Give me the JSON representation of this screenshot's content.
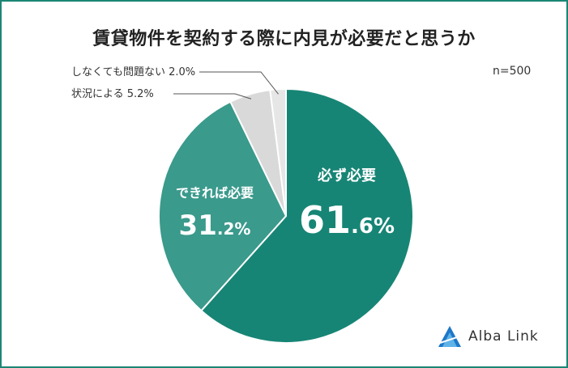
{
  "n_label": "n=500",
  "logo": {
    "text": "Alba Link"
  },
  "colors": {
    "frame": "#1a8575",
    "primary": "#178575",
    "secondary": "#3a9a8c",
    "tertiary": "#d9d9d9",
    "quaternary": "#e6e6e6"
  },
  "chart_data": {
    "type": "pie",
    "title": "賃貸物件を契約する際に内見が必要だと思うか",
    "slices": [
      {
        "label": "必ず必要",
        "value": 61.6,
        "value_label": "61.6%",
        "color": "#178575"
      },
      {
        "label": "できれば必要",
        "value": 31.2,
        "value_label": "31.2%",
        "color": "#3a9a8c"
      },
      {
        "label": "状況による",
        "value": 5.2,
        "value_label": "5.2%",
        "color": "#d9d9d9"
      },
      {
        "label": "しなくても問題ない",
        "value": 2.0,
        "value_label": "2.0%",
        "color": "#e6e6e6"
      }
    ]
  }
}
